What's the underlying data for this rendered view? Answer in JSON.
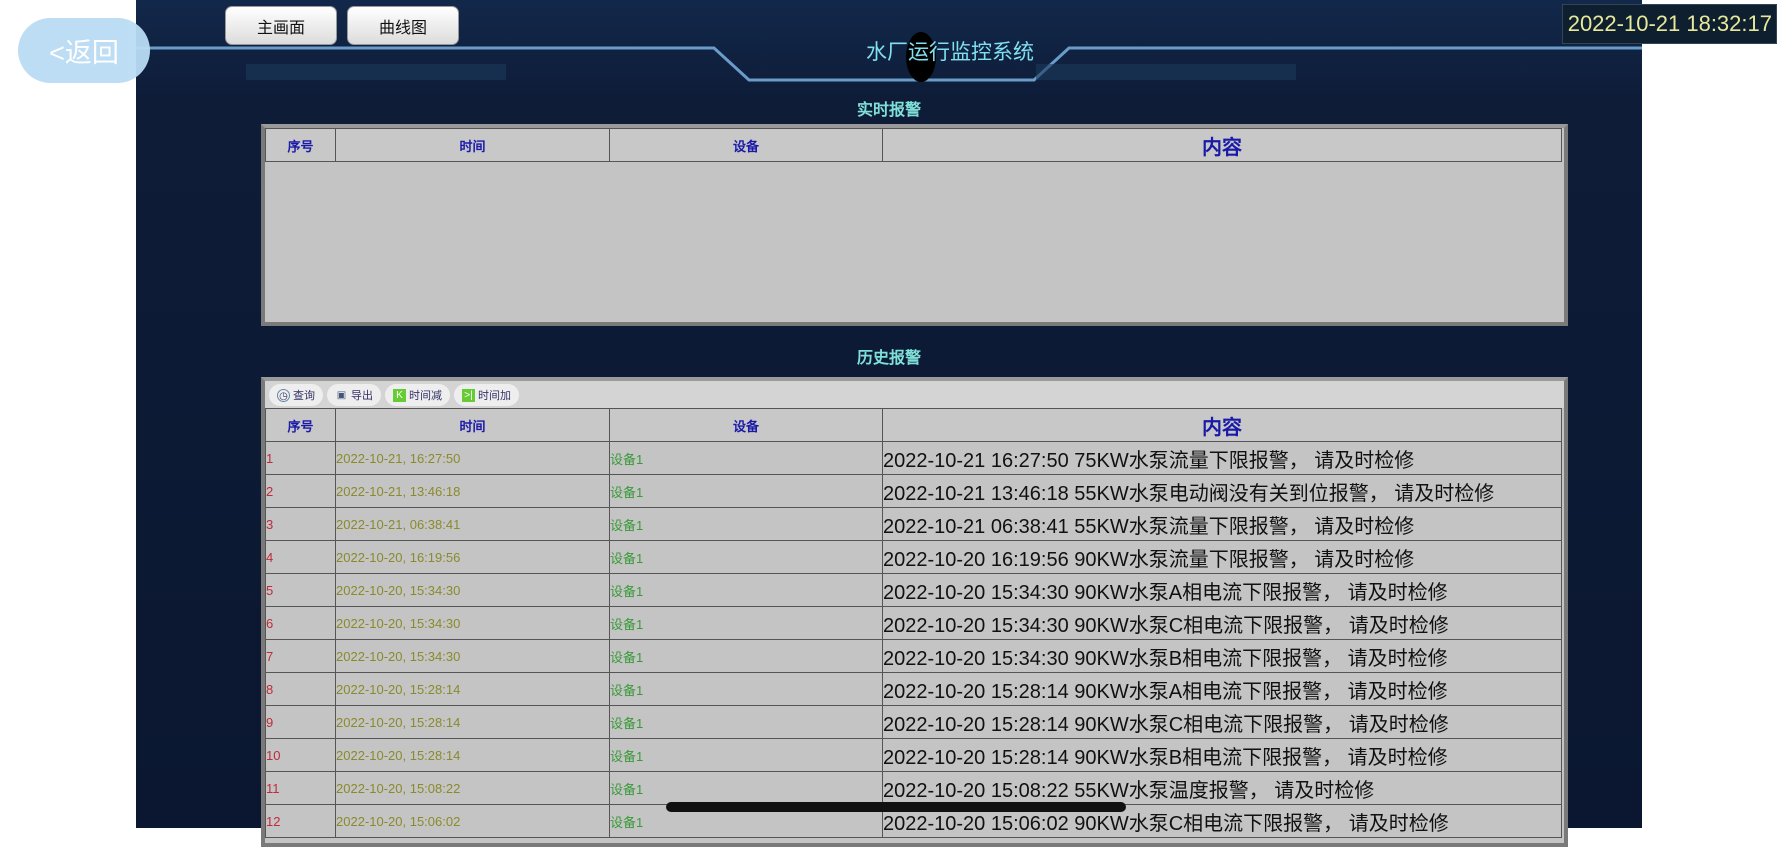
{
  "back_label": "<返回",
  "nav": {
    "main": "主画面",
    "curve": "曲线图"
  },
  "clock": "2022-10-21 18:32:17",
  "title": "水厂运行监控系统",
  "realtime": {
    "title": "实时报警",
    "headers": [
      "序号",
      "时间",
      "设备",
      "内容"
    ]
  },
  "history": {
    "title": "历史报警",
    "toolbar": [
      "查询",
      "导出",
      "时间减",
      "时间加"
    ],
    "headers": [
      "序号",
      "时间",
      "设备",
      "内容"
    ],
    "rows": [
      [
        "1",
        "2022-10-21, 16:27:50",
        "设备1",
        "2022-10-21 16:27:50 75KW水泵流量下限报警， 请及时检修"
      ],
      [
        "2",
        "2022-10-21, 13:46:18",
        "设备1",
        "2022-10-21 13:46:18 55KW水泵电动阀没有关到位报警， 请及时检修"
      ],
      [
        "3",
        "2022-10-21, 06:38:41",
        "设备1",
        "2022-10-21 06:38:41 55KW水泵流量下限报警， 请及时检修"
      ],
      [
        "4",
        "2022-10-20, 16:19:56",
        "设备1",
        "2022-10-20 16:19:56 90KW水泵流量下限报警， 请及时检修"
      ],
      [
        "5",
        "2022-10-20, 15:34:30",
        "设备1",
        "2022-10-20 15:34:30 90KW水泵A相电流下限报警， 请及时检修"
      ],
      [
        "6",
        "2022-10-20, 15:34:30",
        "设备1",
        "2022-10-20 15:34:30 90KW水泵C相电流下限报警， 请及时检修"
      ],
      [
        "7",
        "2022-10-20, 15:34:30",
        "设备1",
        "2022-10-20 15:34:30 90KW水泵B相电流下限报警， 请及时检修"
      ],
      [
        "8",
        "2022-10-20, 15:28:14",
        "设备1",
        "2022-10-20 15:28:14 90KW水泵A相电流下限报警， 请及时检修"
      ],
      [
        "9",
        "2022-10-20, 15:28:14",
        "设备1",
        "2022-10-20 15:28:14 90KW水泵C相电流下限报警， 请及时检修"
      ],
      [
        "10",
        "2022-10-20, 15:28:14",
        "设备1",
        "2022-10-20 15:28:14 90KW水泵B相电流下限报警， 请及时检修"
      ],
      [
        "11",
        "2022-10-20, 15:08:22",
        "设备1",
        "2022-10-20 15:08:22 55KW水泵温度报警， 请及时检修"
      ],
      [
        "12",
        "2022-10-20, 15:06:02",
        "设备1",
        "2022-10-20 15:06:02 90KW水泵C相电流下限报警， 请及时检修"
      ]
    ]
  }
}
